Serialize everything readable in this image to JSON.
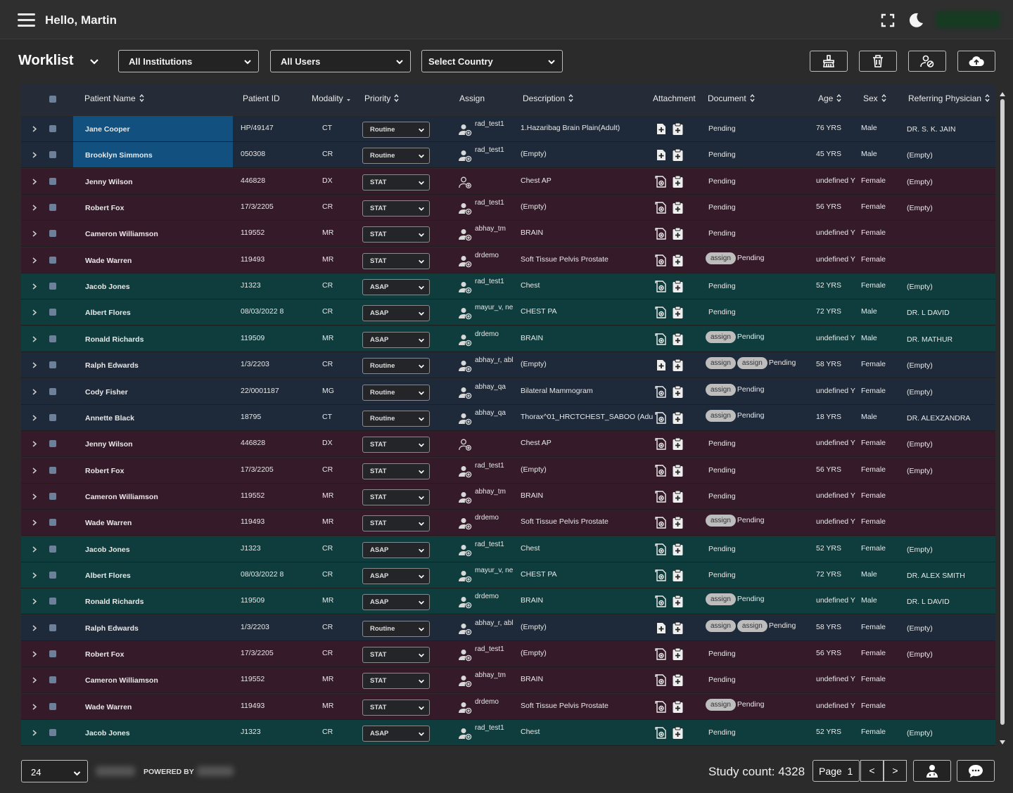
{
  "header": {
    "greeting": "Hello, Martin"
  },
  "toolbar": {
    "title": "Worklist",
    "institutions": "All Institutions",
    "users": "All Users",
    "country": "Select Country"
  },
  "columns": {
    "patient_name": "Patient Name",
    "patient_id": "Patient ID",
    "modality": "Modality",
    "priority": "Priority",
    "assign": "Assign",
    "description": "Description",
    "attachment": "Attachment",
    "document": "Document",
    "age": "Age",
    "sex": "Sex",
    "physician": "Referring Physician"
  },
  "colors": {
    "blue_row": "#1e2a3a",
    "maroon_row": "#351a2a",
    "teal_row": "#0f3d3d",
    "selected_cell": "#11507f"
  },
  "rows": [
    {
      "name": "Jane Cooper",
      "id": "HP/49147",
      "mod": "CT",
      "pri": "Routine",
      "asg": "rad_test1",
      "desc": "1.Hazaribag Brain Plain(Adult)",
      "assigns": 0,
      "doc": "Pending",
      "age": "76 YRS",
      "sex": "Male",
      "phys": "DR. S. K. JAIN",
      "tone": "blue",
      "sel": true,
      "att": "file"
    },
    {
      "name": "Brooklyn Simmons",
      "id": "050308",
      "mod": "CR",
      "pri": "Routine",
      "asg": "rad_test1",
      "desc": "(Empty)",
      "assigns": 0,
      "doc": "Pending",
      "age": "45 YRS",
      "sex": "Male",
      "phys": "(Empty)",
      "tone": "blue",
      "sel": true,
      "att": "file"
    },
    {
      "name": "Jenny Wilson",
      "id": "446828",
      "mod": "DX",
      "pri": "STAT",
      "asg": "",
      "desc": "Chest AP",
      "assigns": 0,
      "doc": "Pending",
      "age": "undefined Y",
      "sex": "Female",
      "phys": "(Empty)",
      "tone": "maroon",
      "att": "cam"
    },
    {
      "name": "Robert Fox",
      "id": "17/3/2205",
      "mod": "CR",
      "pri": "STAT",
      "asg": "rad_test1",
      "desc": "(Empty)",
      "assigns": 0,
      "doc": "Pending",
      "age": "56 YRS",
      "sex": "Female",
      "phys": "(Empty)",
      "tone": "maroon",
      "att": "cam"
    },
    {
      "name": "Cameron Williamson",
      "id": "119552",
      "mod": "MR",
      "pri": "STAT",
      "asg": "abhay_tm",
      "desc": "BRAIN",
      "assigns": 0,
      "doc": "Pending",
      "age": "undefined Y",
      "sex": "Female",
      "phys": "",
      "tone": "maroon",
      "att": "cam"
    },
    {
      "name": "Wade Warren",
      "id": "119493",
      "mod": "MR",
      "pri": "STAT",
      "asg": "drdemo",
      "desc": "Soft Tissue Pelvis Prostate",
      "assigns": 1,
      "doc": "Pending",
      "age": "undefined Y",
      "sex": "Female",
      "phys": "",
      "tone": "maroon",
      "att": "cam"
    },
    {
      "name": "Jacob Jones",
      "id": "J1323",
      "mod": "CR",
      "pri": "ASAP",
      "asg": "rad_test1",
      "desc": "Chest",
      "assigns": 0,
      "doc": "Pending",
      "age": "52 YRS",
      "sex": "Female",
      "phys": "(Empty)",
      "tone": "teal",
      "att": "cam"
    },
    {
      "name": "Albert Flores",
      "id": "08/03/2022 8",
      "mod": "CR",
      "pri": "ASAP",
      "asg": "mayur_v, ne",
      "desc": "CHEST PA",
      "assigns": 0,
      "doc": "Pending",
      "age": "72 YRS",
      "sex": "Male",
      "phys": "DR. L DAVID",
      "tone": "teal",
      "att": "cam"
    },
    {
      "name": "Ronald Richards",
      "id": "119509",
      "mod": "MR",
      "pri": "ASAP",
      "asg": "drdemo",
      "desc": "BRAIN",
      "assigns": 1,
      "doc": "Pending",
      "age": "undefined Y",
      "sex": "Male",
      "phys": "DR. MATHUR",
      "tone": "teal",
      "att": "cam"
    },
    {
      "name": "Ralph Edwards",
      "id": "1/3/2203",
      "mod": "CR",
      "pri": "Routine",
      "asg": "abhay_r, abl",
      "desc": "(Empty)",
      "assigns": 2,
      "doc": "Pending",
      "age": "58 YRS",
      "sex": "Female",
      "phys": "(Empty)",
      "tone": "blue",
      "att": "file"
    },
    {
      "name": "Cody Fisher",
      "id": "22/0001187",
      "mod": "MG",
      "pri": "Routine",
      "asg": "abhay_qa",
      "desc": "Bilateral Mammogram",
      "assigns": 1,
      "doc": "Pending",
      "age": "undefined Y",
      "sex": "Female",
      "phys": "(Empty)",
      "tone": "blue",
      "att": "cam"
    },
    {
      "name": "Annette Black",
      "id": "18795",
      "mod": "CT",
      "pri": "Routine",
      "asg": "abhay_qa",
      "desc": "Thorax^01_HRCTCHEST_SABOO (Adu",
      "assigns": 1,
      "doc": "Pending",
      "age": "18 YRS",
      "sex": "Male",
      "phys": "DR. ALEXZANDRA",
      "tone": "blue",
      "att": "cam"
    },
    {
      "name": "Jenny Wilson",
      "id": "446828",
      "mod": "DX",
      "pri": "STAT",
      "asg": "",
      "desc": "Chest AP",
      "assigns": 0,
      "doc": "Pending",
      "age": "undefined Y",
      "sex": "Female",
      "phys": "(Empty)",
      "tone": "maroon",
      "att": "cam"
    },
    {
      "name": "Robert Fox",
      "id": "17/3/2205",
      "mod": "CR",
      "pri": "STAT",
      "asg": "rad_test1",
      "desc": "(Empty)",
      "assigns": 0,
      "doc": "Pending",
      "age": "56 YRS",
      "sex": "Female",
      "phys": "(Empty)",
      "tone": "maroon",
      "att": "cam"
    },
    {
      "name": "Cameron Williamson",
      "id": "119552",
      "mod": "MR",
      "pri": "STAT",
      "asg": "abhay_tm",
      "desc": "BRAIN",
      "assigns": 0,
      "doc": "Pending",
      "age": "undefined Y",
      "sex": "Female",
      "phys": "",
      "tone": "maroon",
      "att": "cam"
    },
    {
      "name": "Wade Warren",
      "id": "119493",
      "mod": "MR",
      "pri": "STAT",
      "asg": "drdemo",
      "desc": "Soft Tissue Pelvis Prostate",
      "assigns": 1,
      "doc": "Pending",
      "age": "undefined Y",
      "sex": "Female",
      "phys": "",
      "tone": "maroon",
      "att": "cam"
    },
    {
      "name": "Jacob Jones",
      "id": "J1323",
      "mod": "CR",
      "pri": "ASAP",
      "asg": "rad_test1",
      "desc": "Chest",
      "assigns": 0,
      "doc": "Pending",
      "age": "52 YRS",
      "sex": "Female",
      "phys": "(Empty)",
      "tone": "teal",
      "att": "cam"
    },
    {
      "name": "Albert Flores",
      "id": "08/03/2022 8",
      "mod": "CR",
      "pri": "ASAP",
      "asg": "mayur_v, ne",
      "desc": "CHEST PA",
      "assigns": 0,
      "doc": "Pending",
      "age": "72 YRS",
      "sex": "Male",
      "phys": "DR. ALEX SMITH",
      "tone": "teal",
      "att": "cam"
    },
    {
      "name": "Ronald Richards",
      "id": "119509",
      "mod": "MR",
      "pri": "ASAP",
      "asg": "drdemo",
      "desc": "BRAIN",
      "assigns": 1,
      "doc": "Pending",
      "age": "undefined Y",
      "sex": "Male",
      "phys": "DR. L DAVID",
      "tone": "teal",
      "att": "cam"
    },
    {
      "name": "Ralph Edwards",
      "id": "1/3/2203",
      "mod": "CR",
      "pri": "Routine",
      "asg": "abhay_r, abl",
      "desc": "(Empty)",
      "assigns": 2,
      "doc": "Pending",
      "age": "58 YRS",
      "sex": "Female",
      "phys": "(Empty)",
      "tone": "blue",
      "att": "file"
    },
    {
      "name": "Robert Fox",
      "id": "17/3/2205",
      "mod": "CR",
      "pri": "STAT",
      "asg": "rad_test1",
      "desc": "(Empty)",
      "assigns": 0,
      "doc": "Pending",
      "age": "56 YRS",
      "sex": "Female",
      "phys": "(Empty)",
      "tone": "maroon",
      "att": "cam"
    },
    {
      "name": "Cameron Williamson",
      "id": "119552",
      "mod": "MR",
      "pri": "STAT",
      "asg": "abhay_tm",
      "desc": "BRAIN",
      "assigns": 0,
      "doc": "Pending",
      "age": "undefined Y",
      "sex": "Female",
      "phys": "",
      "tone": "maroon",
      "att": "cam"
    },
    {
      "name": "Wade Warren",
      "id": "119493",
      "mod": "MR",
      "pri": "STAT",
      "asg": "drdemo",
      "desc": "Soft Tissue Pelvis Prostate",
      "assigns": 1,
      "doc": "Pending",
      "age": "undefined Y",
      "sex": "Female",
      "phys": "",
      "tone": "maroon",
      "att": "cam"
    },
    {
      "name": "Jacob Jones",
      "id": "J1323",
      "mod": "CR",
      "pri": "ASAP",
      "asg": "rad_test1",
      "desc": "Chest",
      "assigns": 0,
      "doc": "Pending",
      "age": "52 YRS",
      "sex": "Female",
      "phys": "(Empty)",
      "tone": "teal",
      "att": "cam"
    }
  ],
  "assign_label": "assign",
  "footer": {
    "page_size": "24",
    "powered_by": "POWERED BY",
    "study_count": "Study count: 4328",
    "page_label": "Page",
    "page_num": "1",
    "prev": "<",
    "next": ">"
  }
}
